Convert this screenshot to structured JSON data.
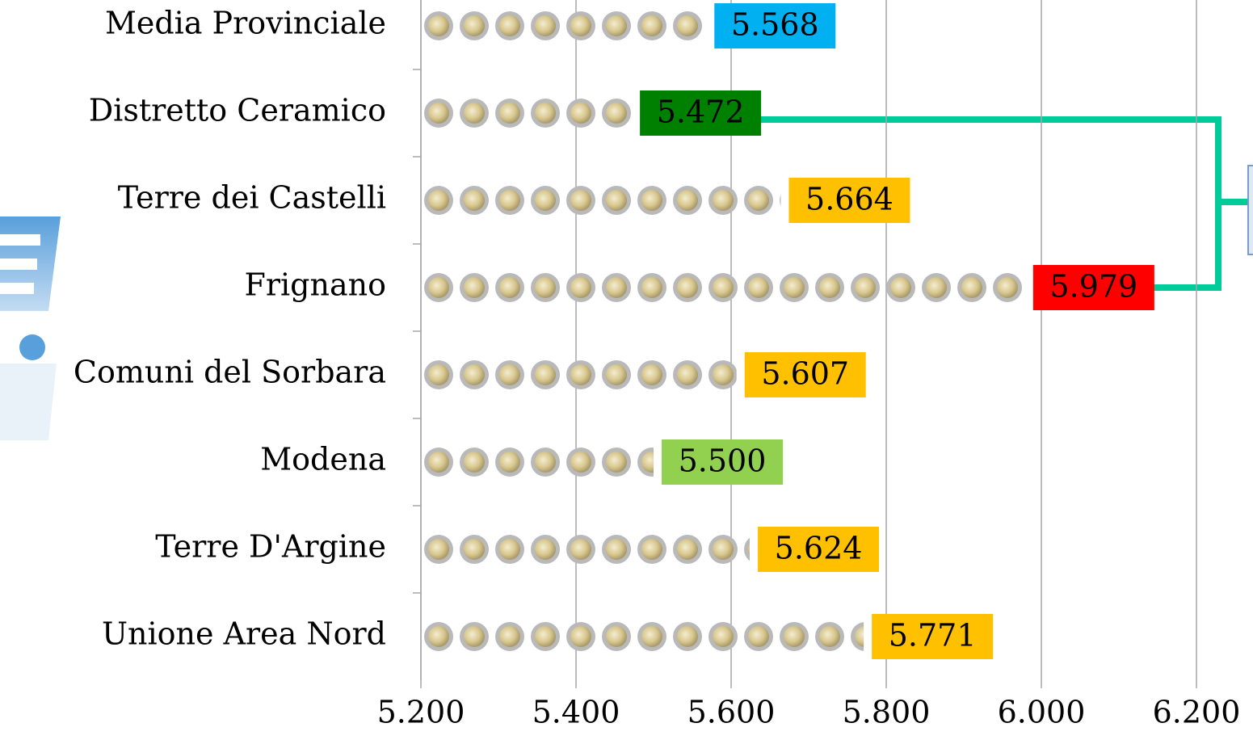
{
  "chart_data": {
    "type": "bar",
    "orientation": "horizontal",
    "categories": [
      "Media Provinciale",
      "Distretto Ceramico",
      "Terre dei Castelli",
      "Frignano",
      "Comuni del Sorbara",
      "Modena",
      "Terre D'Argine",
      "Unione Area Nord"
    ],
    "values": [
      5568,
      5472,
      5664,
      5979,
      5607,
      5500,
      5624,
      5771
    ],
    "value_labels": [
      "5.568",
      "5.472",
      "5.664",
      "5.979",
      "5.607",
      "5.500",
      "5.624",
      "5.771"
    ],
    "label_colors": [
      "#00b0f0",
      "#008000",
      "#ffc000",
      "#ff0000",
      "#ffc000",
      "#92d050",
      "#ffc000",
      "#ffc000"
    ],
    "xlim": [
      5200,
      6200
    ],
    "xticks": [
      {
        "value": 5200,
        "label": "5.200"
      },
      {
        "value": 5400,
        "label": "5.400"
      },
      {
        "value": 5600,
        "label": "5.600"
      },
      {
        "value": 5800,
        "label": "5.800"
      },
      {
        "value": 6000,
        "label": "6.000"
      },
      {
        "value": 6200,
        "label": "6.200"
      }
    ],
    "grid": true
  }
}
